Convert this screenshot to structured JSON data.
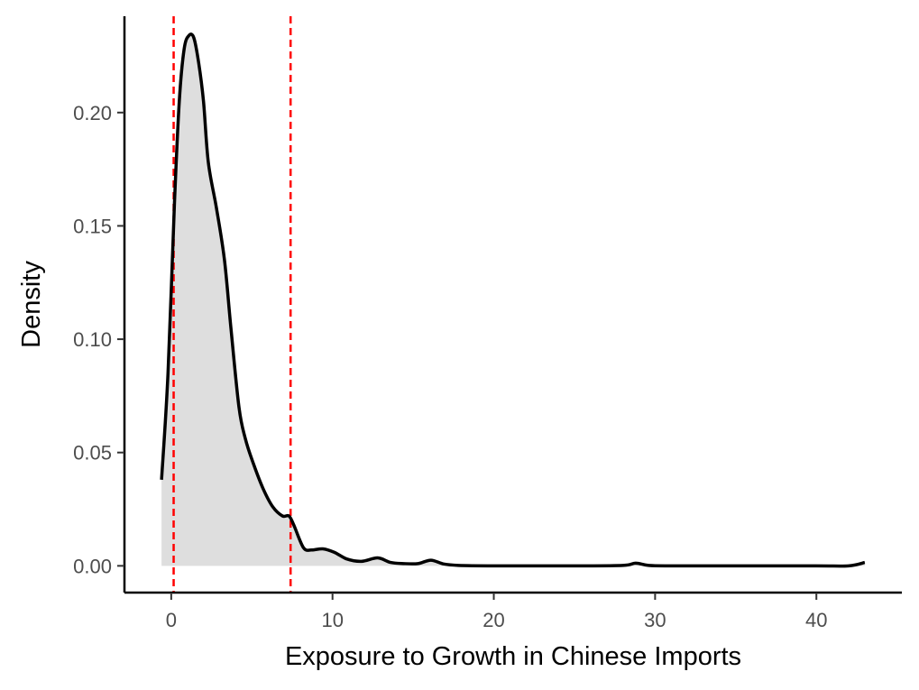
{
  "chart_data": {
    "type": "area",
    "title": "",
    "xlabel": "Exposure to Growth in Chinese Imports",
    "ylabel": "Density",
    "xlim": [
      -2.9,
      45.3
    ],
    "ylim": [
      -0.0118,
      0.2425
    ],
    "x_ticks": [
      0,
      10,
      20,
      30,
      40
    ],
    "x_tick_labels": [
      "0",
      "10",
      "20",
      "30",
      "40"
    ],
    "y_ticks": [
      0.0,
      0.05,
      0.1,
      0.15,
      0.2
    ],
    "y_tick_labels": [
      "0.00",
      "0.05",
      "0.10",
      "0.15",
      "0.20"
    ],
    "grid": false,
    "legend": "none",
    "series": [
      {
        "x": [
          -0.6,
          -0.2,
          0.2,
          0.5,
          0.8,
          1.1,
          1.4,
          1.7,
          2.0,
          2.3,
          2.8,
          3.3,
          3.7,
          4.2,
          4.6,
          5.1,
          5.7,
          6.3,
          6.9,
          7.3,
          7.6,
          8.2,
          8.7,
          9.4,
          10.1,
          10.9,
          11.8,
          12.8,
          13.6,
          14.4,
          15.3,
          16.1,
          16.9,
          17.8,
          20,
          25,
          28,
          28.8,
          29.6,
          31,
          35,
          40,
          42,
          43.0
        ],
        "y": [
          0.038,
          0.085,
          0.16,
          0.205,
          0.228,
          0.234,
          0.233,
          0.222,
          0.205,
          0.178,
          0.158,
          0.135,
          0.105,
          0.07,
          0.056,
          0.045,
          0.034,
          0.026,
          0.022,
          0.022,
          0.018,
          0.008,
          0.007,
          0.0075,
          0.006,
          0.003,
          0.002,
          0.0035,
          0.0015,
          0.001,
          0.001,
          0.0025,
          0.0008,
          0.0002,
          0.0,
          0.0,
          0.0002,
          0.0012,
          0.0002,
          0.0,
          0.0,
          0.0,
          0.0,
          0.0015
        ]
      }
    ],
    "vlines": [
      0.15,
      7.4
    ],
    "colors": {
      "fill": "#dedede",
      "line": "#000000",
      "vline": "#ff0000",
      "axis": "#000000"
    }
  }
}
